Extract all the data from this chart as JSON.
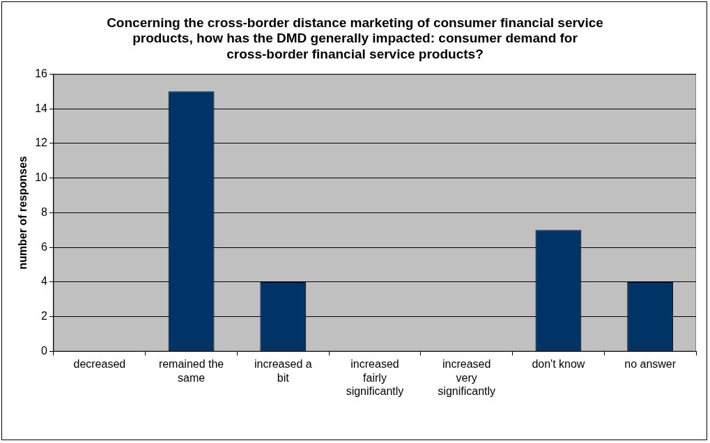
{
  "chart_data": {
    "type": "bar",
    "title": "Concerning the cross-border distance marketing of consumer financial service products, how has the DMD generally impacted: consumer demand for cross-border financial service products?",
    "ylabel": "number of responses",
    "categories": [
      "decreased",
      "remained the same",
      "increased a bit",
      "increased fairly significantly",
      "increased very significantly",
      "don't know",
      "no answer"
    ],
    "values": [
      0,
      15,
      4,
      0,
      0,
      7,
      4
    ],
    "color": "#003366",
    "ylim": [
      0,
      16
    ],
    "yticks": [
      0,
      2,
      4,
      6,
      8,
      10,
      12,
      14,
      16
    ],
    "grid": "y",
    "legend": false
  }
}
